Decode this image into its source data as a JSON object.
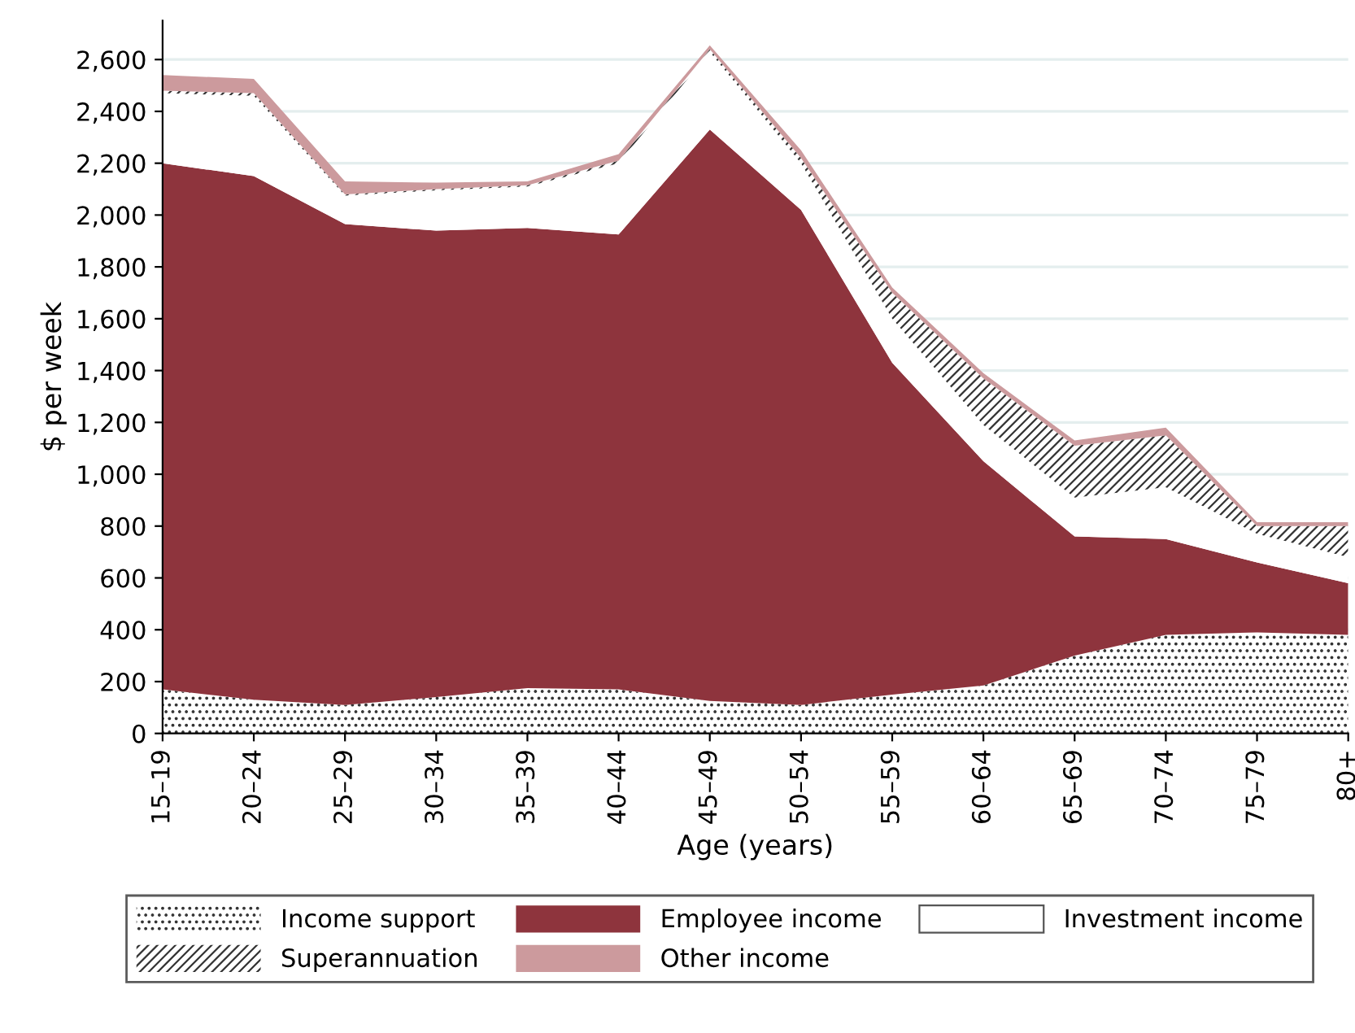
{
  "chart_data": {
    "type": "area",
    "stacked": true,
    "xlabel": "Age (years)",
    "ylabel": "$ per week",
    "categories": [
      "15–19",
      "20–24",
      "25–29",
      "30–34",
      "35–39",
      "40–44",
      "45–49",
      "50–54",
      "55–59",
      "60–64",
      "65–69",
      "70–74",
      "75–79",
      "80+"
    ],
    "series": [
      {
        "name": "Income support",
        "color": "#ffffff",
        "values": [
          170,
          130,
          110,
          140,
          175,
          170,
          125,
          110,
          150,
          185,
          300,
          380,
          390,
          380
        ]
      },
      {
        "name": "Employee income",
        "color": "#8e343d",
        "values": [
          2030,
          2020,
          1855,
          1800,
          1775,
          1755,
          2205,
          1910,
          1280,
          865,
          460,
          370,
          270,
          200
        ]
      },
      {
        "name": "Investment income",
        "color": "#ffffff",
        "values": [
          270,
          310,
          110,
          155,
          160,
          275,
          300,
          180,
          170,
          140,
          150,
          200,
          110,
          100
        ]
      },
      {
        "name": "Superannuation",
        "color": "#ffffff",
        "values": [
          10,
          10,
          5,
          5,
          5,
          10,
          10,
          20,
          100,
          180,
          200,
          200,
          30,
          120
        ]
      },
      {
        "name": "Other income",
        "color": "#cc9a9d",
        "values": [
          60,
          55,
          50,
          25,
          15,
          25,
          15,
          30,
          20,
          20,
          20,
          30,
          15,
          15
        ]
      }
    ],
    "ylim": [
      0,
      2750
    ],
    "yticks": [
      0,
      200,
      400,
      600,
      800,
      {
        "value": 1000,
        "label": "1,000"
      },
      {
        "value": 1200,
        "label": "1,200"
      },
      {
        "value": 1400,
        "label": "1,400"
      },
      {
        "value": 1600,
        "label": "1,600"
      },
      {
        "value": 1800,
        "label": "1,800"
      },
      {
        "value": 2000,
        "label": "2,000"
      },
      {
        "value": 2200,
        "label": "2,200"
      },
      {
        "value": 2400,
        "label": "2,400"
      },
      {
        "value": 2600,
        "label": "2,600"
      }
    ],
    "grid": "y",
    "legend": "bottom"
  }
}
